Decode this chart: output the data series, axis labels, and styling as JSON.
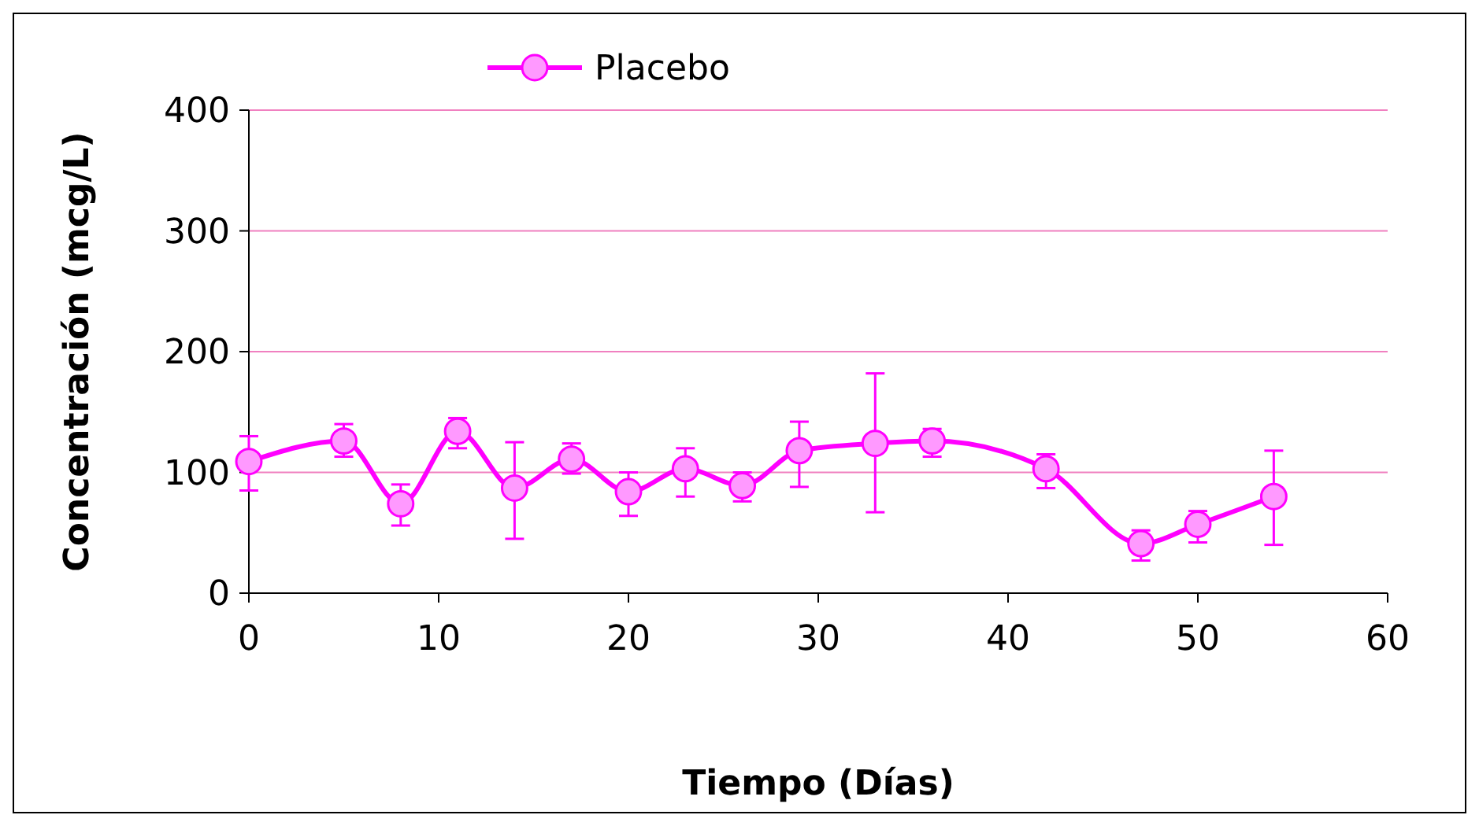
{
  "chart_data": {
    "type": "line",
    "xlabel": "Tiempo (Días)",
    "ylabel": "Concentración (mcg/L)",
    "xlim": [
      0,
      60
    ],
    "xticks": [
      0,
      10,
      20,
      30,
      40,
      50,
      60
    ],
    "ylim": [
      0,
      400
    ],
    "yticks": [
      0,
      100,
      200,
      300,
      400
    ],
    "grid": "y",
    "legend": "top",
    "marker": "circle",
    "line_style": "solid",
    "series": [
      {
        "name": "Placebo",
        "color": "#ff00ff",
        "x": [
          0,
          5,
          8,
          11,
          14,
          17,
          20,
          23,
          26,
          29,
          33,
          36,
          42,
          47,
          50,
          54
        ],
        "values": [
          109,
          126,
          74,
          134,
          87,
          111,
          84,
          103,
          89,
          118,
          124,
          126,
          103,
          41,
          57,
          80
        ],
        "errors": [
          [
            85,
            130
          ],
          [
            113,
            140
          ],
          [
            56,
            90
          ],
          [
            120,
            145
          ],
          [
            45,
            125
          ],
          [
            99,
            124
          ],
          [
            64,
            100
          ],
          [
            80,
            120
          ],
          [
            76,
            100
          ],
          [
            88,
            142
          ],
          [
            67,
            182
          ],
          [
            113,
            136
          ],
          [
            87,
            115
          ],
          [
            27,
            52
          ],
          [
            42,
            68
          ],
          [
            40,
            118
          ]
        ]
      }
    ]
  }
}
